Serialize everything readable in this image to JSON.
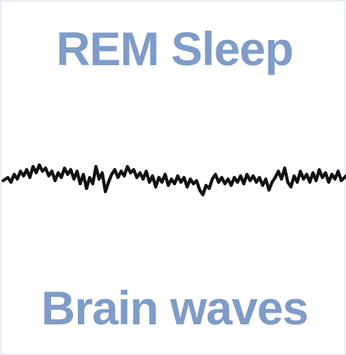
{
  "title": "REM Sleep",
  "caption": "Brain waves",
  "colors": {
    "text": "#7f9cc8",
    "wave": "#111111",
    "border": "#e9eef4",
    "background": "#ffffff"
  }
}
